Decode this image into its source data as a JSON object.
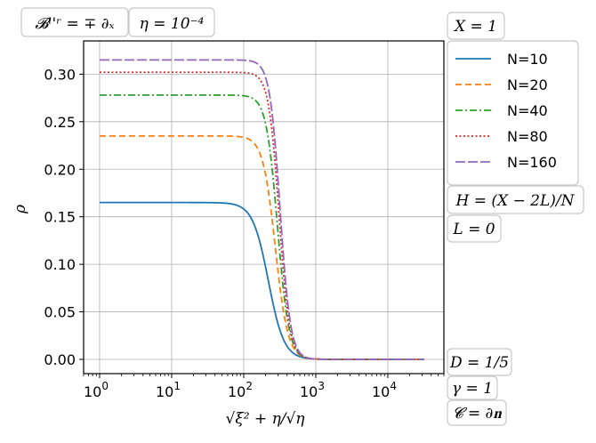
{
  "chart_data": {
    "type": "line",
    "xscale": "log",
    "xlim": [
      0.6,
      60000
    ],
    "ylim": [
      -0.015,
      0.335
    ],
    "xticks": [
      1,
      10,
      100,
      1000,
      10000
    ],
    "xtick_labels": [
      {
        "base": "10",
        "exp": "0"
      },
      {
        "base": "10",
        "exp": "1"
      },
      {
        "base": "10",
        "exp": "2"
      },
      {
        "base": "10",
        "exp": "3"
      },
      {
        "base": "10",
        "exp": "4"
      }
    ],
    "yticks": [
      0.0,
      0.05,
      0.1,
      0.15,
      0.2,
      0.25,
      0.3
    ],
    "ytick_labels": [
      "0.00",
      "0.05",
      "0.10",
      "0.15",
      "0.20",
      "0.25",
      "0.30"
    ],
    "xlabel": "√ξ² + η/√η",
    "ylabel": "ρ",
    "grid": true,
    "legend_placement": "outside-right-top",
    "x_range_data": [
      1,
      32000
    ],
    "series": [
      {
        "name": "N=10",
        "color": "#1f77b4",
        "dash": "solid",
        "plateau": 0.165,
        "midpoint": 220,
        "steepness": 4.0
      },
      {
        "name": "N=20",
        "color": "#ff7f0e",
        "dash": "dashed",
        "plateau": 0.235,
        "midpoint": 275,
        "steepness": 5.0
      },
      {
        "name": "N=40",
        "color": "#2ca02c",
        "dash": "dashdot",
        "plateau": 0.278,
        "midpoint": 295,
        "steepness": 5.5
      },
      {
        "name": "N=80",
        "color": "#d62728",
        "dash": "dotted",
        "plateau": 0.302,
        "midpoint": 310,
        "steepness": 6.0
      },
      {
        "name": "N=160",
        "color": "#9467bd",
        "dash": "longdash",
        "plateau": 0.315,
        "midpoint": 320,
        "steepness": 6.0
      }
    ],
    "annotations": [
      {
        "id": "b-lr",
        "text": "𝓑ˡ'ʳ = ∓ ∂ₓ"
      },
      {
        "id": "eta",
        "text": "η = 10⁻⁴"
      },
      {
        "id": "x-eq",
        "text": "X = 1"
      },
      {
        "id": "h-eq",
        "text": "H = (X − 2L)/N"
      },
      {
        "id": "l-eq",
        "text": "L = 0"
      },
      {
        "id": "d-eq",
        "text": "D = 1/5"
      },
      {
        "id": "gamma-eq",
        "text": "γ = 1"
      },
      {
        "id": "c-eq",
        "text": "𝓒 = ∂𝐧"
      }
    ]
  }
}
